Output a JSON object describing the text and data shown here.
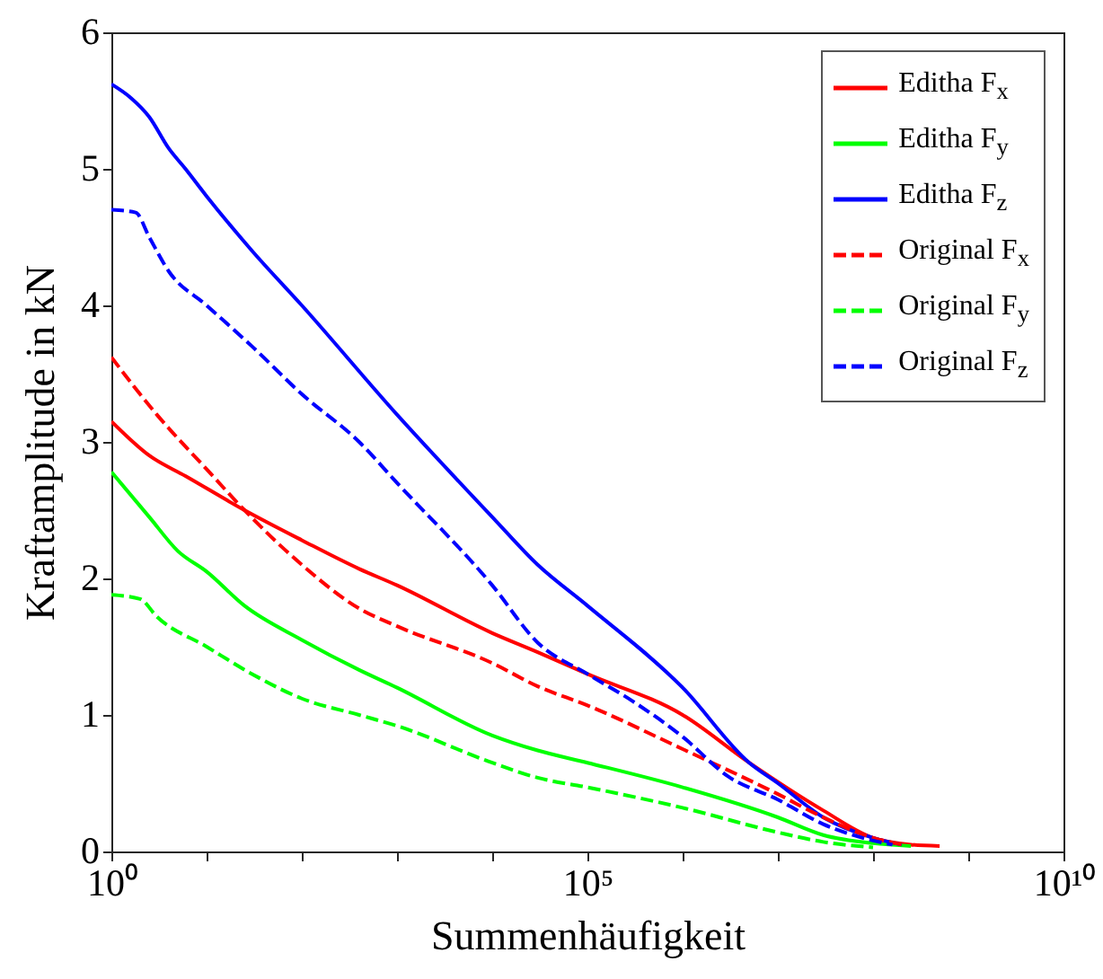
{
  "chart_data": {
    "type": "line",
    "xlabel": "Summenhäufigkeit",
    "ylabel": "Kraftamplitude in kN",
    "log": "x",
    "grid": false,
    "legend": "top right",
    "marker": "none",
    "xlim": [
      1,
      10000000000
    ],
    "ylim": [
      0,
      6
    ],
    "xticks": [
      {
        "value": 1,
        "label": "10⁰"
      },
      {
        "value": 10,
        "label": null
      },
      {
        "value": 100,
        "label": null
      },
      {
        "value": 1000,
        "label": null
      },
      {
        "value": 10000,
        "label": null
      },
      {
        "value": 100000,
        "label": "10⁵"
      },
      {
        "value": 1000000,
        "label": null
      },
      {
        "value": 10000000,
        "label": null
      },
      {
        "value": 100000000,
        "label": null
      },
      {
        "value": 1000000000,
        "label": null
      },
      {
        "value": 10000000000,
        "label": "10¹⁰"
      }
    ],
    "yticks": [
      0,
      1,
      2,
      3,
      4,
      5,
      6
    ],
    "series": [
      {
        "name": "Editha F$_{x}$",
        "color": "#ff0000",
        "line_style": "solid",
        "x": [
          1,
          2.5,
          6,
          25,
          100,
          400,
          1000,
          10000,
          30000,
          100000,
          1000000,
          5000000,
          30000000,
          100000000,
          250000000,
          500000000
        ],
        "values": [
          3.15,
          2.9,
          2.75,
          2.5,
          2.28,
          2.07,
          1.95,
          1.6,
          1.46,
          1.3,
          1.0,
          0.65,
          0.3,
          0.1,
          0.05,
          0.04
        ]
      },
      {
        "name": "Editha F$_{y}$",
        "color": "#00ff00",
        "line_style": "solid",
        "x": [
          1,
          2.5,
          5,
          10,
          25,
          100,
          400,
          1000,
          10000,
          30000,
          100000,
          1000000,
          10000000,
          30000000,
          100000000,
          250000000
        ],
        "values": [
          2.78,
          2.45,
          2.2,
          2.05,
          1.8,
          1.55,
          1.33,
          1.2,
          0.85,
          0.74,
          0.65,
          0.47,
          0.25,
          0.12,
          0.06,
          0.04
        ]
      },
      {
        "name": "Editha F$_{z}$",
        "color": "#0000ff",
        "line_style": "solid",
        "x": [
          1,
          1.6,
          2.5,
          4,
          6,
          10,
          30,
          100,
          1000,
          10000,
          30000,
          100000,
          1000000,
          5000000,
          10000000,
          30000000,
          100000000,
          200000000
        ],
        "values": [
          5.62,
          5.52,
          5.38,
          5.15,
          5.0,
          4.8,
          4.4,
          4.0,
          3.2,
          2.45,
          2.1,
          1.8,
          1.2,
          0.65,
          0.5,
          0.25,
          0.1,
          0.05
        ]
      },
      {
        "name": "Original F$_{x}$",
        "color": "#ff0000",
        "line_style": "dashed",
        "x": [
          1,
          3,
          10,
          25,
          100,
          400,
          1000,
          10000,
          30000,
          100000,
          1000000,
          10000000,
          30000000,
          100000000,
          200000000
        ],
        "values": [
          3.62,
          3.2,
          2.8,
          2.5,
          2.1,
          1.78,
          1.65,
          1.38,
          1.21,
          1.07,
          0.75,
          0.42,
          0.25,
          0.1,
          0.05
        ]
      },
      {
        "name": "Original F$_{y}$",
        "color": "#00ff00",
        "line_style": "dashed",
        "x": [
          1,
          2,
          3,
          10,
          30,
          100,
          400,
          1000,
          10000,
          30000,
          100000,
          1000000,
          10000000,
          30000000,
          100000000
        ],
        "values": [
          1.88,
          1.85,
          1.72,
          1.5,
          1.3,
          1.12,
          1.0,
          0.92,
          0.65,
          0.54,
          0.47,
          0.32,
          0.14,
          0.07,
          0.03
        ]
      },
      {
        "name": "Original F$_{z}$",
        "color": "#0000ff",
        "line_style": "dashed",
        "x": [
          1,
          1.8,
          2.5,
          4,
          10,
          30,
          100,
          400,
          1000,
          10000,
          30000,
          100000,
          300000,
          1000000,
          3000000,
          10000000,
          30000000,
          100000000,
          160000000
        ],
        "values": [
          4.7,
          4.68,
          4.5,
          4.25,
          4.0,
          3.7,
          3.35,
          3.0,
          2.7,
          1.95,
          1.53,
          1.3,
          1.1,
          0.84,
          0.55,
          0.38,
          0.2,
          0.08,
          0.05
        ]
      }
    ]
  }
}
